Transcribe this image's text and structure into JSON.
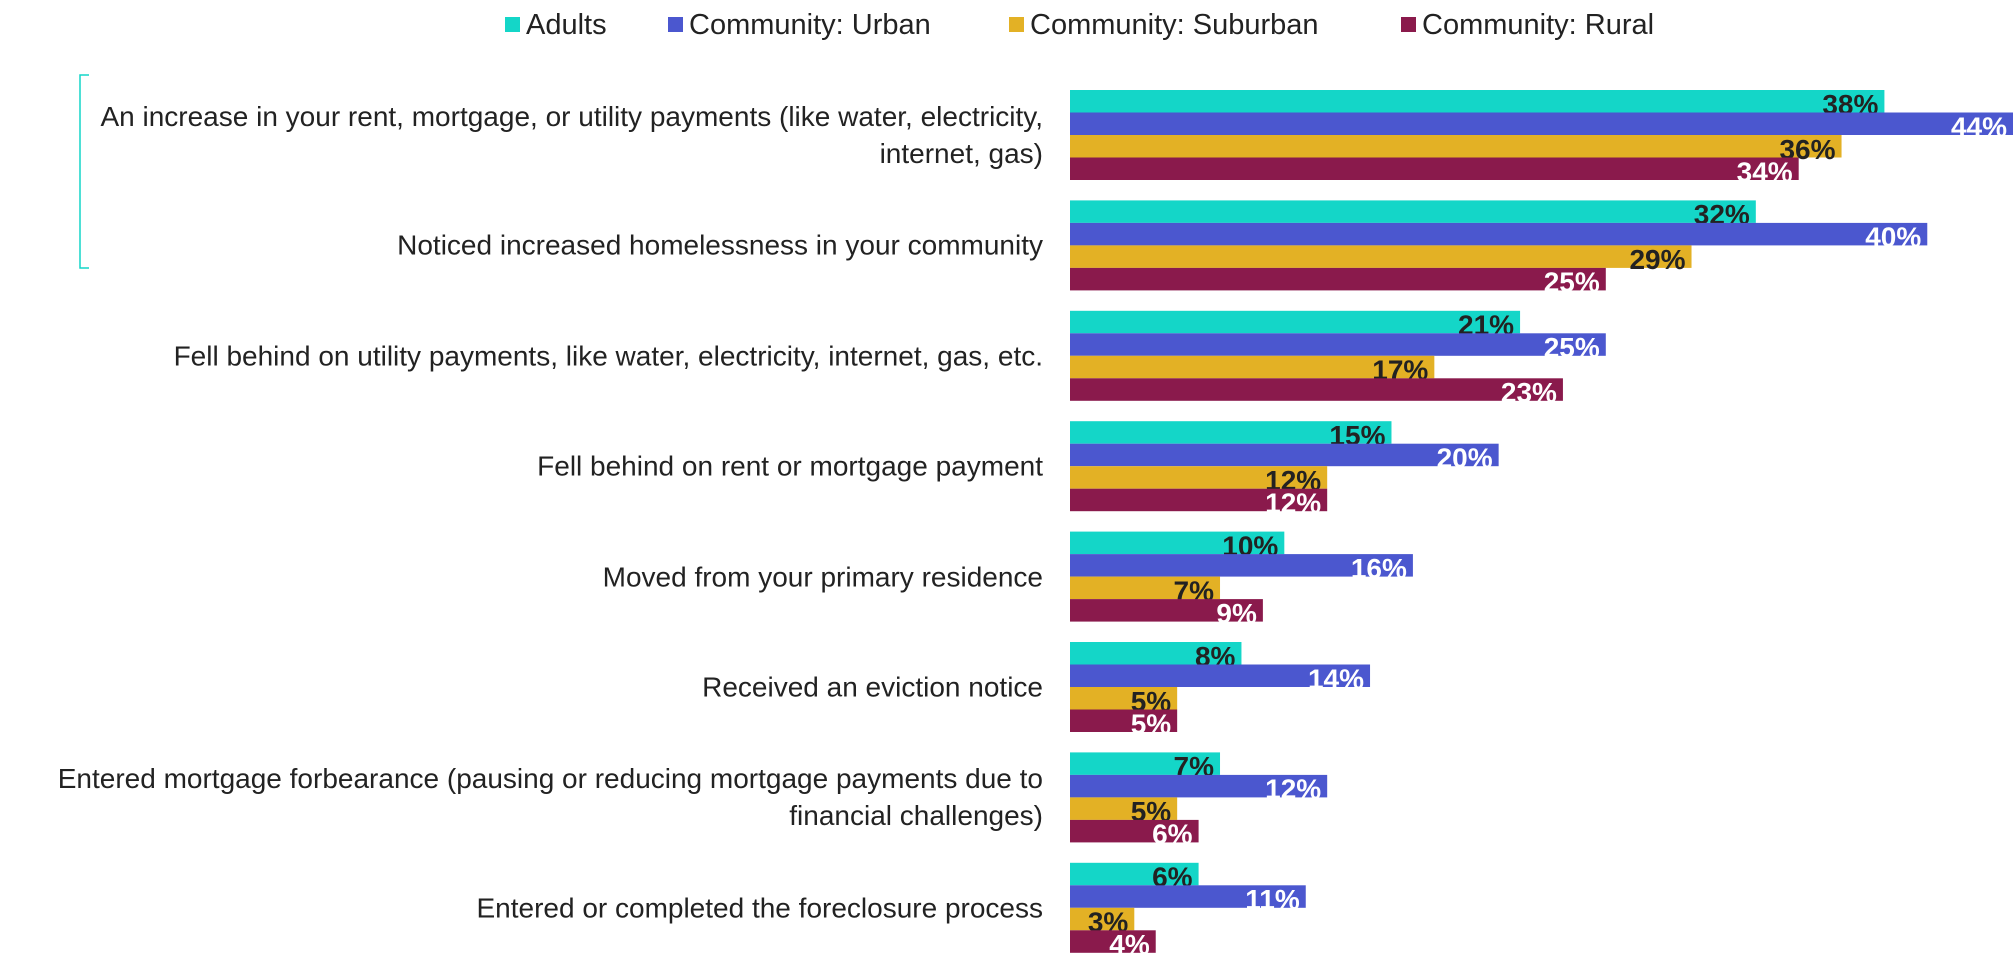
{
  "chart_data": {
    "type": "bar",
    "orientation": "horizontal",
    "categories": [
      "An increase in your rent, mortgage, or utility payments (like water, electricity, internet, gas)",
      "Noticed increased homelessness in your community",
      "Fell behind on utility payments, like water, electricity, internet, gas, etc.",
      "Fell behind on rent or mortgage payment",
      "Moved from your primary residence",
      "Received an eviction notice",
      "Entered mortgage forbearance (pausing or reducing mortgage payments due to financial challenges)",
      "Entered or completed the foreclosure process"
    ],
    "series": [
      {
        "name": "Adults",
        "color": "#14d6c8",
        "values": [
          38,
          32,
          21,
          15,
          10,
          8,
          7,
          6
        ],
        "value_labels": [
          "38%",
          "32%",
          "21%",
          "15%",
          "10%",
          "8%",
          "7%",
          "6%"
        ]
      },
      {
        "name": "Community: Urban",
        "color": "#4b57cf",
        "values": [
          44,
          40,
          25,
          20,
          16,
          14,
          12,
          11
        ],
        "value_labels": [
          "44%",
          "40%",
          "25%",
          "20%",
          "16%",
          "14%",
          "12%",
          "11%"
        ]
      },
      {
        "name": "Community: Suburban",
        "color": "#e3b125",
        "values": [
          36,
          29,
          17,
          12,
          7,
          5,
          5,
          3
        ],
        "value_labels": [
          "36%",
          "29%",
          "17%",
          "12%",
          "7%",
          "5%",
          "5%",
          "3%"
        ]
      },
      {
        "name": "Community: Rural",
        "color": "#8a1a4c",
        "values": [
          34,
          25,
          23,
          12,
          9,
          5,
          6,
          4
        ],
        "value_labels": [
          "34%",
          "25%",
          "23%",
          "12%",
          "9%",
          "5%",
          "6%",
          "4%"
        ]
      }
    ],
    "xlim": [
      0,
      44
    ],
    "legend": "top"
  }
}
